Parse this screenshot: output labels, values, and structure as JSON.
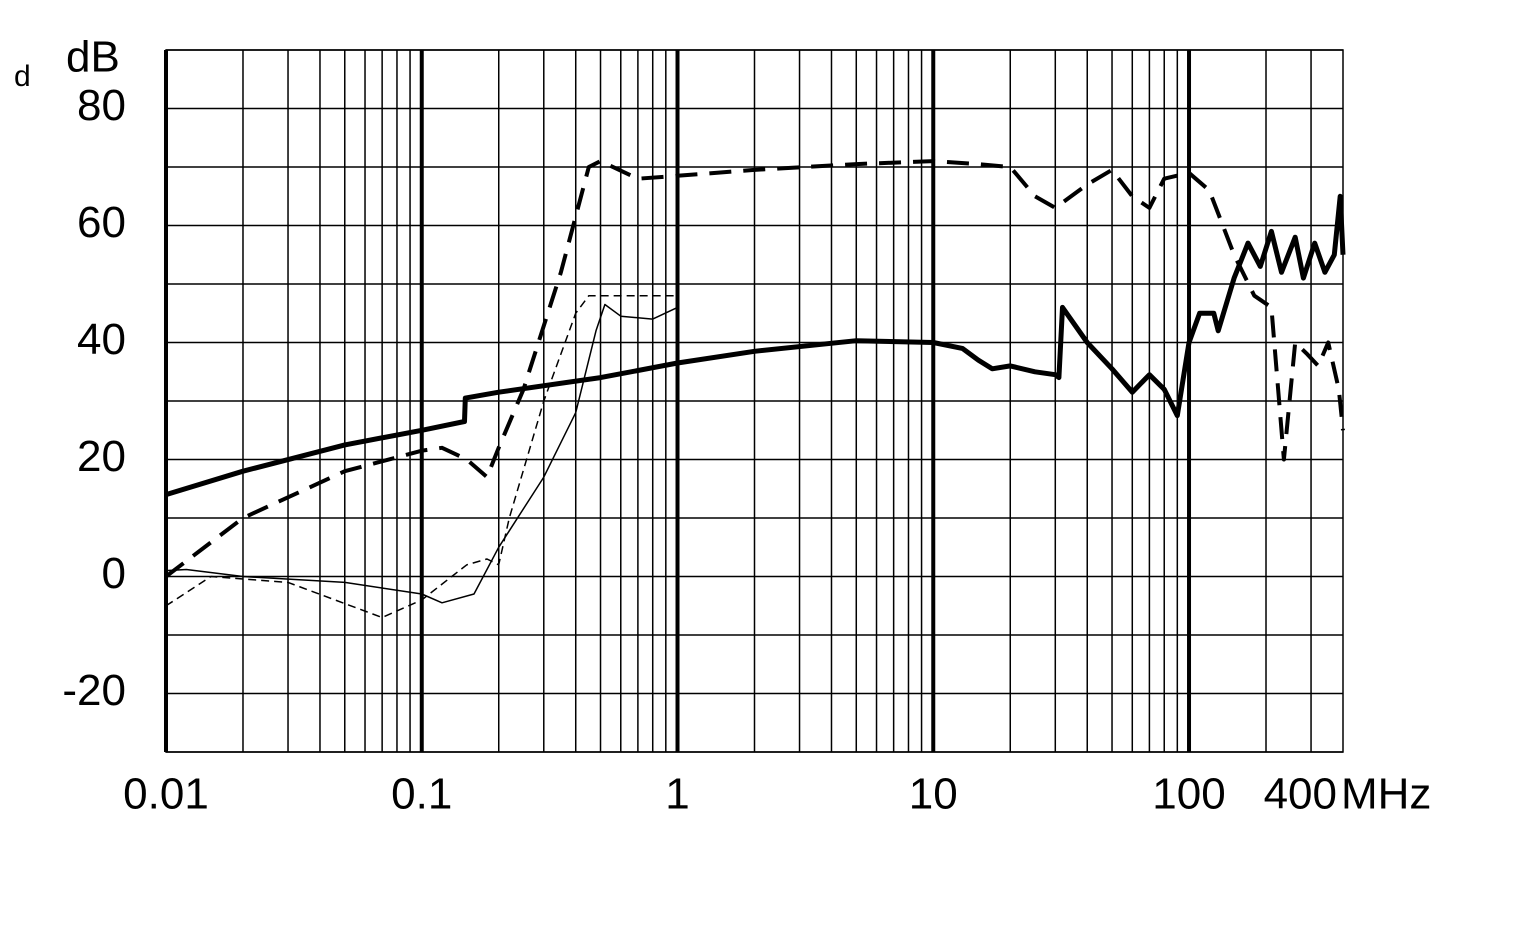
{
  "chart_data": {
    "type": "line",
    "corner_label": "d",
    "y_label": "dB",
    "x_label": "MHz",
    "x_log": true,
    "grid": true,
    "color": "#000000",
    "xlim": [
      0.01,
      400
    ],
    "xticks": [
      0.01,
      0.1,
      1,
      10,
      100,
      400
    ],
    "ylim": [
      -30,
      90
    ],
    "yticks": [
      -20,
      0,
      20,
      40,
      60,
      80
    ],
    "y_minor_ticks": [
      -30,
      -10,
      10,
      30,
      50,
      70,
      90
    ],
    "series": [
      {
        "style": "solid",
        "width": 5,
        "x": [
          0.01,
          0.02,
          0.05,
          0.1,
          0.147,
          0.148,
          0.2,
          0.5,
          1,
          2,
          5,
          10,
          13,
          15,
          17,
          20,
          25,
          30,
          31,
          32,
          40,
          50,
          60,
          70,
          80,
          90,
          100,
          110,
          125,
          130,
          150,
          170,
          190,
          210,
          230,
          260,
          280,
          310,
          340,
          370,
          390,
          400
        ],
        "values": [
          14,
          18,
          22.5,
          25,
          26.5,
          30.5,
          31.5,
          34,
          36.5,
          38.5,
          40.3,
          40,
          39,
          37,
          35.5,
          36,
          35,
          34.5,
          34,
          46,
          40,
          35.5,
          31.5,
          34.5,
          32,
          27.5,
          40,
          45,
          45,
          42,
          51,
          57,
          53,
          59,
          52,
          58,
          51,
          57,
          52,
          55,
          65,
          55
        ]
      },
      {
        "style": "dashed",
        "width": 4,
        "x": [
          0.01,
          0.02,
          0.05,
          0.1,
          0.12,
          0.15,
          0.18,
          0.2,
          0.25,
          0.35,
          0.45,
          0.5,
          0.7,
          1,
          2,
          5,
          10,
          15,
          20,
          25,
          30,
          40,
          50,
          60,
          70,
          80,
          100,
          120,
          150,
          180,
          210,
          235,
          260,
          290,
          320,
          350,
          385,
          400
        ],
        "values": [
          0,
          10,
          18,
          21.5,
          22,
          20,
          17,
          22,
          32,
          52,
          70,
          71,
          68,
          68.5,
          69.5,
          70.5,
          71,
          70.5,
          70,
          65,
          63,
          67,
          69.5,
          65,
          63,
          68,
          69,
          66,
          55,
          48,
          46,
          20,
          40,
          38,
          36,
          40,
          32,
          25
        ]
      },
      {
        "style": "solid",
        "width": 1.5,
        "x": [
          0.01,
          0.012,
          0.02,
          0.05,
          0.1,
          0.12,
          0.16,
          0.2,
          0.3,
          0.4,
          0.48,
          0.52,
          0.6,
          0.8,
          1
        ],
        "values": [
          1,
          1.2,
          0,
          -1,
          -3,
          -4.5,
          -3,
          5,
          17,
          28,
          42,
          46.5,
          44.5,
          44,
          46
        ]
      },
      {
        "style": "dashed",
        "width": 1.5,
        "x": [
          0.01,
          0.015,
          0.03,
          0.07,
          0.1,
          0.15,
          0.18,
          0.2,
          0.22,
          0.3,
          0.4,
          0.45,
          1
        ],
        "values": [
          -5,
          0,
          -1,
          -7,
          -4,
          2,
          3,
          2,
          10,
          30,
          45,
          48,
          48
        ]
      }
    ]
  }
}
